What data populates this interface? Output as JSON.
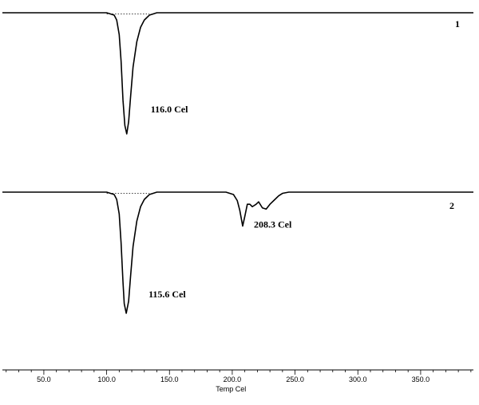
{
  "chart_data": {
    "type": "line",
    "title": "",
    "xlabel": "Temp Cel",
    "ylabel": "",
    "xlim": [
      17,
      392
    ],
    "x_ticks": [
      50,
      100,
      150,
      200,
      250,
      300,
      350
    ],
    "x_tick_labels": [
      "50.0",
      "100.0",
      "150.0",
      "200.0",
      "250.0",
      "300.0",
      "350.0"
    ],
    "grid": false,
    "legend": "none",
    "line_color": "#000000",
    "series": [
      {
        "number": "1",
        "points": [
          [
            17,
            0
          ],
          [
            100,
            0
          ],
          [
            106,
            -0.02
          ],
          [
            108,
            -0.06
          ],
          [
            110,
            -0.18
          ],
          [
            111.5,
            -0.4
          ],
          [
            113,
            -0.72
          ],
          [
            114.5,
            -0.93
          ],
          [
            116.0,
            -1.0
          ],
          [
            117.5,
            -0.9
          ],
          [
            119,
            -0.7
          ],
          [
            121,
            -0.45
          ],
          [
            124,
            -0.24
          ],
          [
            127,
            -0.12
          ],
          [
            130,
            -0.06
          ],
          [
            134,
            -0.02
          ],
          [
            140,
            0
          ],
          [
            392,
            0
          ]
        ],
        "annotations": [
          {
            "x": 116.0,
            "text": "116.0 Cel"
          }
        ]
      },
      {
        "number": "2",
        "points": [
          [
            17,
            0
          ],
          [
            100,
            0
          ],
          [
            106,
            -0.02
          ],
          [
            108,
            -0.06
          ],
          [
            110,
            -0.18
          ],
          [
            111.5,
            -0.42
          ],
          [
            113,
            -0.74
          ],
          [
            114,
            -0.92
          ],
          [
            115.6,
            -1.0
          ],
          [
            117.5,
            -0.9
          ],
          [
            119,
            -0.7
          ],
          [
            121,
            -0.45
          ],
          [
            124,
            -0.24
          ],
          [
            127,
            -0.12
          ],
          [
            130,
            -0.06
          ],
          [
            134,
            -0.02
          ],
          [
            140,
            0
          ],
          [
            195,
            0
          ],
          [
            201,
            -0.02
          ],
          [
            204,
            -0.07
          ],
          [
            206,
            -0.15
          ],
          [
            208.3,
            -0.28
          ],
          [
            210,
            -0.2
          ],
          [
            212,
            -0.1
          ],
          [
            214,
            -0.1
          ],
          [
            216,
            -0.12
          ],
          [
            219,
            -0.1
          ],
          [
            221,
            -0.08
          ],
          [
            224,
            -0.13
          ],
          [
            227,
            -0.14
          ],
          [
            230,
            -0.1
          ],
          [
            234,
            -0.06
          ],
          [
            237,
            -0.03
          ],
          [
            240,
            -0.01
          ],
          [
            245,
            0
          ],
          [
            392,
            0
          ]
        ],
        "annotations": [
          {
            "x": 115.6,
            "text": "115.6 Cel"
          },
          {
            "x": 208.3,
            "text": "208.3 Cel"
          }
        ]
      }
    ]
  }
}
